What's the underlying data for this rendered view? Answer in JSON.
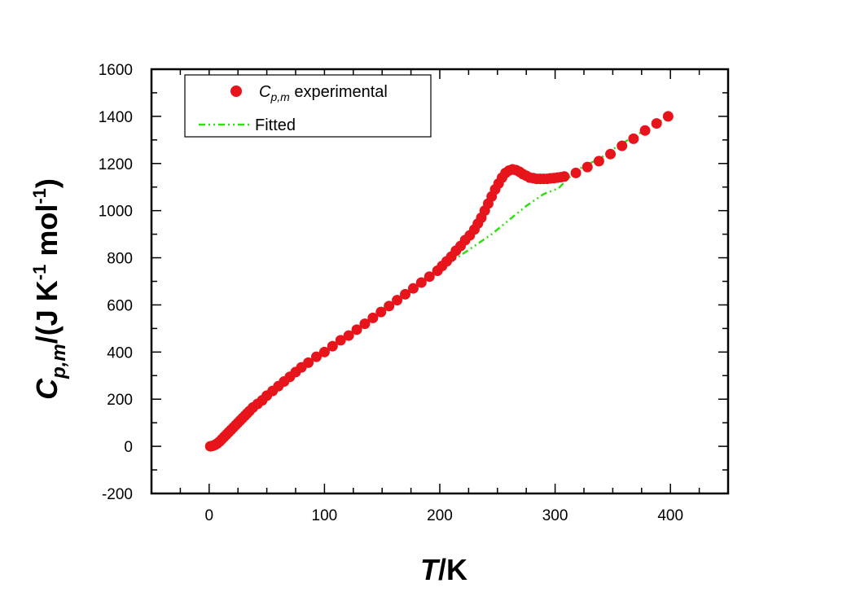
{
  "chart_data": {
    "type": "scatter",
    "title": "",
    "xlabel_italic": "T",
    "xlabel_rest": "/K",
    "ylabel_main": "C",
    "ylabel_sub": "p,m",
    "ylabel_part1": "/(J K",
    "ylabel_sup1": "-1",
    "ylabel_part2": " mol",
    "ylabel_sup2": "-1",
    "ylabel_close": ")",
    "xlim": [
      -50,
      450
    ],
    "ylim": [
      -200,
      1600
    ],
    "x_ticks": [
      0,
      100,
      200,
      300,
      400
    ],
    "y_ticks": [
      -200,
      0,
      200,
      400,
      600,
      800,
      1000,
      1200,
      1400,
      1600
    ],
    "grid": false,
    "legend_position": "top-left",
    "colors": {
      "experimental": "#e8141c",
      "fitted": "#33dd11"
    },
    "series": [
      {
        "name_main": "C",
        "name_sub": "p,m",
        "name_rest": " experimental",
        "style": "markers",
        "x": [
          1,
          3,
          5,
          7,
          9,
          11,
          13,
          15,
          17,
          19,
          21,
          23,
          25,
          27,
          29,
          31,
          33,
          35,
          38,
          42,
          46,
          50,
          55,
          60,
          65,
          70,
          75,
          80,
          86,
          93,
          100,
          107,
          114,
          121,
          128,
          135,
          142,
          149,
          156,
          163,
          170,
          177,
          184,
          191,
          198,
          202,
          206,
          210,
          214,
          218,
          222,
          226,
          230,
          233,
          236,
          239,
          242,
          245,
          248,
          251,
          254,
          257,
          260,
          263,
          266,
          269,
          272,
          275,
          278,
          281,
          284,
          287,
          290,
          293,
          296,
          299,
          302,
          305,
          308,
          318,
          328,
          338,
          348,
          358,
          368,
          378,
          388,
          398
        ],
        "y": [
          0,
          2,
          6,
          12,
          20,
          30,
          40,
          50,
          60,
          70,
          80,
          90,
          100,
          110,
          120,
          130,
          140,
          150,
          165,
          180,
          195,
          215,
          235,
          255,
          275,
          295,
          315,
          335,
          355,
          380,
          400,
          425,
          450,
          470,
          495,
          520,
          545,
          570,
          595,
          620,
          645,
          670,
          695,
          720,
          745,
          765,
          785,
          805,
          830,
          850,
          875,
          895,
          920,
          945,
          970,
          1000,
          1030,
          1060,
          1090,
          1115,
          1140,
          1160,
          1170,
          1175,
          1172,
          1165,
          1155,
          1148,
          1140,
          1138,
          1135,
          1135,
          1135,
          1135,
          1137,
          1138,
          1140,
          1142,
          1145,
          1160,
          1185,
          1210,
          1240,
          1275,
          1305,
          1340,
          1370,
          1400
        ]
      },
      {
        "name": "Fitted",
        "style": "dash-dot-dot",
        "x": [
          5,
          25,
          50,
          75,
          100,
          125,
          150,
          175,
          200,
          215,
          230,
          245,
          260,
          275,
          290,
          303,
          310,
          320,
          330,
          340,
          350,
          360,
          370,
          380,
          390,
          398
        ],
        "y": [
          10,
          100,
          205,
          320,
          405,
          490,
          580,
          665,
          750,
          800,
          850,
          900,
          960,
          1020,
          1070,
          1095,
          1130,
          1175,
          1200,
          1225,
          1260,
          1290,
          1320,
          1345,
          1375,
          1400
        ]
      }
    ]
  }
}
